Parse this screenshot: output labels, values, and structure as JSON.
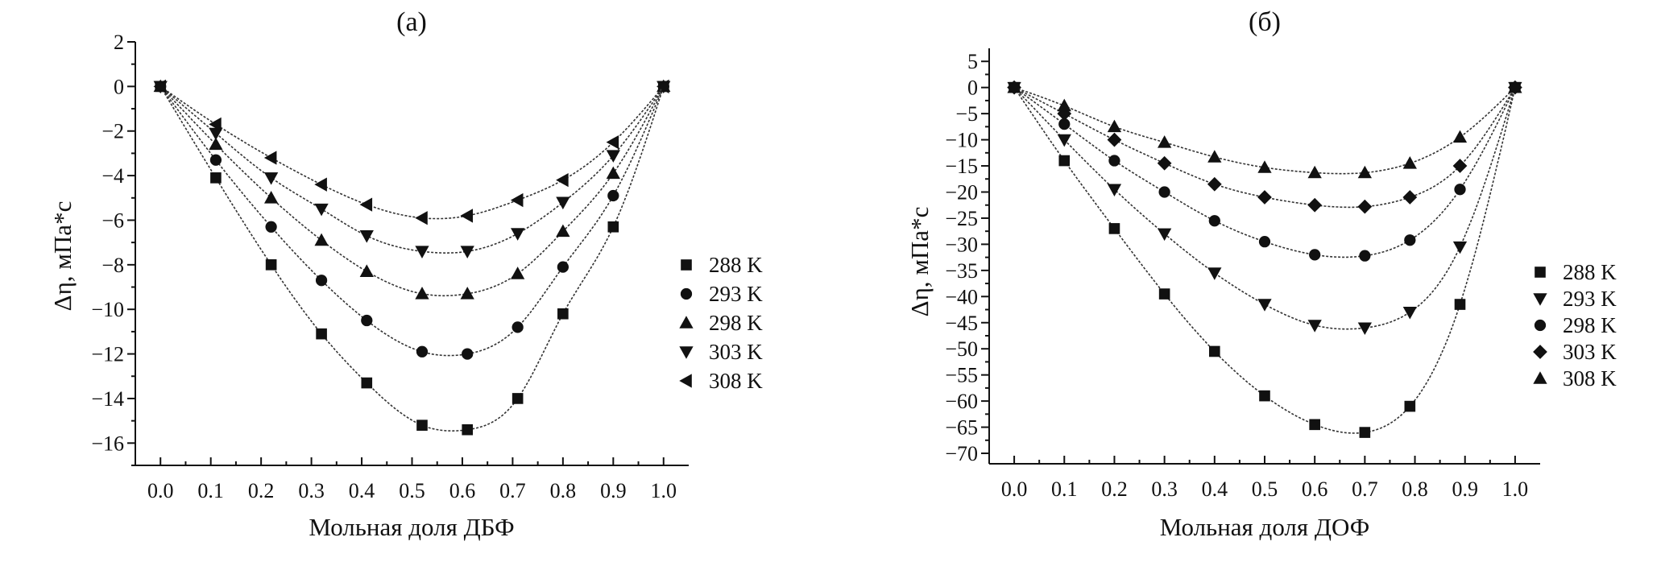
{
  "colors": {
    "ink": "#111111",
    "curve": "#333333",
    "background": "#ffffff"
  },
  "chart_data": [
    {
      "type": "scatter",
      "panel_label": "(а)",
      "title": "",
      "xlabel": "Мольная доля ДБФ",
      "ylabel": "Δη, мПа*с",
      "xlim": [
        -0.05,
        1.05
      ],
      "ylim": [
        -17,
        2
      ],
      "xticks": [
        0.0,
        0.1,
        0.2,
        0.3,
        0.4,
        0.5,
        0.6,
        0.7,
        0.8,
        0.9,
        1.0
      ],
      "xtick_labels": [
        "0.0",
        "0.1",
        "0.2",
        "0.3",
        "0.4",
        "0.5",
        "0.6",
        "0.7",
        "0.8",
        "0.9",
        "1.0"
      ],
      "yticks": [
        2,
        0,
        -2,
        -4,
        -6,
        -8,
        -10,
        -12,
        -14,
        -16
      ],
      "ytick_labels": [
        "2",
        "0",
        "−2",
        "−4",
        "−6",
        "−8",
        "−10",
        "−12",
        "−14",
        "−16"
      ],
      "grid": false,
      "legend_position": "right",
      "fit_curves": true,
      "series": [
        {
          "name": "288 K",
          "marker": "square",
          "x": [
            0.0,
            0.11,
            0.22,
            0.32,
            0.41,
            0.52,
            0.61,
            0.71,
            0.8,
            0.9,
            1.0
          ],
          "y": [
            0.0,
            -4.1,
            -8.0,
            -11.1,
            -13.3,
            -15.2,
            -15.4,
            -14.0,
            -10.2,
            -6.3,
            0.0
          ]
        },
        {
          "name": "293 K",
          "marker": "circle",
          "x": [
            0.0,
            0.11,
            0.22,
            0.32,
            0.41,
            0.52,
            0.61,
            0.71,
            0.8,
            0.9,
            1.0
          ],
          "y": [
            0.0,
            -3.3,
            -6.3,
            -8.7,
            -10.5,
            -11.9,
            -12.0,
            -10.8,
            -8.1,
            -4.9,
            0.0
          ]
        },
        {
          "name": "298 K",
          "marker": "triangle-up",
          "x": [
            0.0,
            0.11,
            0.22,
            0.32,
            0.41,
            0.52,
            0.61,
            0.71,
            0.8,
            0.9,
            1.0
          ],
          "y": [
            0.0,
            -2.6,
            -5.0,
            -6.9,
            -8.3,
            -9.3,
            -9.3,
            -8.4,
            -6.5,
            -3.9,
            0.0
          ]
        },
        {
          "name": "303 K",
          "marker": "triangle-down",
          "x": [
            0.0,
            0.11,
            0.22,
            0.32,
            0.41,
            0.52,
            0.61,
            0.71,
            0.8,
            0.9,
            1.0
          ],
          "y": [
            0.0,
            -2.1,
            -4.1,
            -5.5,
            -6.7,
            -7.4,
            -7.4,
            -6.6,
            -5.2,
            -3.1,
            0.0
          ]
        },
        {
          "name": "308 K",
          "marker": "triangle-left",
          "x": [
            0.0,
            0.11,
            0.22,
            0.32,
            0.41,
            0.52,
            0.61,
            0.71,
            0.8,
            0.9,
            1.0
          ],
          "y": [
            0.0,
            -1.7,
            -3.2,
            -4.4,
            -5.3,
            -5.9,
            -5.8,
            -5.1,
            -4.2,
            -2.5,
            0.0
          ]
        }
      ]
    },
    {
      "type": "scatter",
      "panel_label": "(б)",
      "title": "",
      "xlabel": "Мольная доля ДОФ",
      "ylabel": "Δη, мПа*с",
      "xlim": [
        -0.05,
        1.05
      ],
      "ylim": [
        -72,
        7.5
      ],
      "xticks": [
        0.0,
        0.1,
        0.2,
        0.3,
        0.4,
        0.5,
        0.6,
        0.7,
        0.8,
        0.9,
        1.0
      ],
      "xtick_labels": [
        "0.0",
        "0.1",
        "0.2",
        "0.3",
        "0.4",
        "0.5",
        "0.6",
        "0.7",
        "0.8",
        "0.9",
        "1.0"
      ],
      "yticks": [
        5,
        0,
        -5,
        -10,
        -15,
        -20,
        -25,
        -30,
        -35,
        -40,
        -45,
        -50,
        -55,
        -60,
        -65,
        -70
      ],
      "ytick_labels": [
        "5",
        "0",
        "−5",
        "−10",
        "−15",
        "−20",
        "−25",
        "−30",
        "−35",
        "−40",
        "−45",
        "−50",
        "−55",
        "−60",
        "−65",
        "−70"
      ],
      "grid": false,
      "legend_position": "right",
      "fit_curves": true,
      "series": [
        {
          "name": "288 K",
          "marker": "square",
          "x": [
            0.0,
            0.1,
            0.2,
            0.3,
            0.4,
            0.5,
            0.6,
            0.7,
            0.79,
            0.89,
            1.0
          ],
          "y": [
            0.0,
            -14,
            -27,
            -39.5,
            -50.5,
            -59,
            -64.5,
            -66,
            -61,
            -41.5,
            0.0
          ]
        },
        {
          "name": "293 K",
          "marker": "triangle-down",
          "x": [
            0.0,
            0.1,
            0.2,
            0.3,
            0.4,
            0.5,
            0.6,
            0.7,
            0.79,
            0.89,
            1.0
          ],
          "y": [
            0.0,
            -10,
            -19.5,
            -28,
            -35.5,
            -41.5,
            -45.5,
            -46,
            -43,
            -30.5,
            0.0
          ]
        },
        {
          "name": "298 K",
          "marker": "circle",
          "x": [
            0.0,
            0.1,
            0.2,
            0.3,
            0.4,
            0.5,
            0.6,
            0.7,
            0.79,
            0.89,
            1.0
          ],
          "y": [
            0.0,
            -7,
            -14,
            -20,
            -25.5,
            -29.5,
            -32,
            -32.2,
            -29.2,
            -19.5,
            0.0
          ]
        },
        {
          "name": "303 K",
          "marker": "diamond",
          "x": [
            0.0,
            0.1,
            0.2,
            0.3,
            0.4,
            0.5,
            0.6,
            0.7,
            0.79,
            0.89,
            1.0
          ],
          "y": [
            0.0,
            -5,
            -10,
            -14.5,
            -18.5,
            -21,
            -22.5,
            -22.8,
            -21,
            -15,
            0.0
          ]
        },
        {
          "name": "308 K",
          "marker": "triangle-up",
          "x": [
            0.0,
            0.1,
            0.2,
            0.3,
            0.4,
            0.5,
            0.6,
            0.7,
            0.79,
            0.89,
            1.0
          ],
          "y": [
            0.0,
            -3.5,
            -7.5,
            -10.5,
            -13.3,
            -15.3,
            -16.3,
            -16.3,
            -14.5,
            -9.5,
            0.0
          ]
        }
      ]
    }
  ]
}
